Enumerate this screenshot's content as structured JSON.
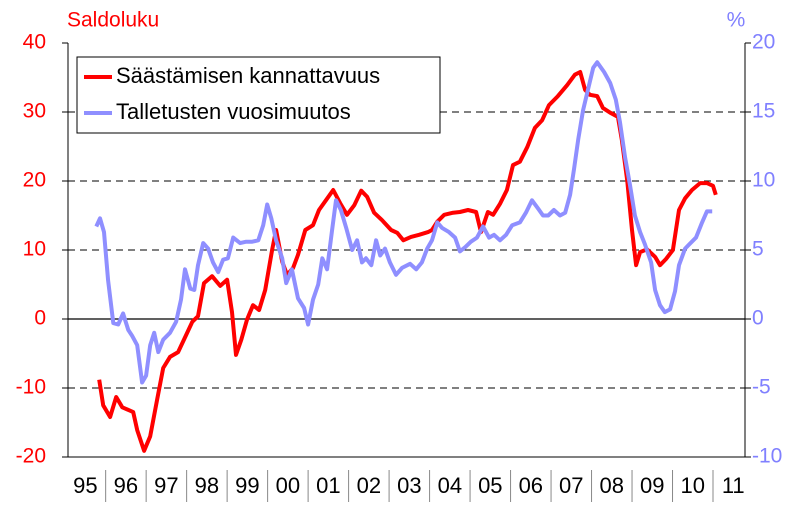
{
  "chart_data": {
    "type": "line",
    "y_axis_label": "Saldoluku",
    "y2_axis_label": "%",
    "categories": [
      "95",
      "96",
      "97",
      "98",
      "99",
      "00",
      "01",
      "02",
      "03",
      "04",
      "05",
      "06",
      "07",
      "08",
      "09",
      "10",
      "11"
    ],
    "xlim": [
      1995.07,
      2011.79
    ],
    "xticks": [
      1996,
      1997,
      1998,
      1999,
      2000,
      2001,
      2002,
      2003,
      2004,
      2005,
      2006,
      2007,
      2008,
      2009,
      2010,
      2011
    ],
    "ylim": [
      -20,
      40
    ],
    "yticks": [
      -20,
      -10,
      0,
      10,
      20,
      30,
      40
    ],
    "y2lim": [
      -10,
      20
    ],
    "y2ticks": [
      -10,
      -5,
      0,
      5,
      10,
      15,
      20
    ],
    "grid": true,
    "legend": "upper left",
    "y_color": "#ff0000",
    "y2_color": "#8080ff",
    "series": [
      {
        "name": "Säästämisen kannattavuus",
        "color": "#ff0000",
        "axis": "y",
        "x": [
          1995.84,
          1995.94,
          1996.11,
          1996.26,
          1996.41,
          1996.68,
          1996.78,
          1996.95,
          1997.1,
          1997.27,
          1997.42,
          1997.59,
          1997.79,
          1997.99,
          1998.14,
          1998.28,
          1998.43,
          1998.63,
          1998.83,
          1999.0,
          1999.12,
          1999.22,
          1999.35,
          1999.49,
          1999.64,
          1999.79,
          1999.94,
          2000.11,
          2000.21,
          2000.36,
          2000.48,
          2000.63,
          2000.75,
          2000.93,
          2001.12,
          2001.27,
          2001.44,
          2001.62,
          2001.79,
          2001.96,
          2002.14,
          2002.31,
          2002.46,
          2002.63,
          2002.83,
          2003.05,
          2003.2,
          2003.35,
          2003.54,
          2003.74,
          2003.96,
          2004.06,
          2004.19,
          2004.36,
          2004.58,
          2004.75,
          2004.95,
          2005.15,
          2005.27,
          2005.44,
          2005.57,
          2005.74,
          2005.91,
          2006.06,
          2006.23,
          2006.41,
          2006.6,
          2006.78,
          2006.95,
          2007.17,
          2007.4,
          2007.59,
          2007.72,
          2007.84,
          2007.96,
          2008.14,
          2008.28,
          2008.46,
          2008.65,
          2008.75,
          2008.88,
          2009.0,
          2009.1,
          2009.2,
          2009.37,
          2009.57,
          2009.69,
          2009.84,
          2010.01,
          2010.16,
          2010.31,
          2010.48,
          2010.68,
          2010.85,
          2011.0,
          2011.07
        ],
        "values": [
          -8.8,
          -12.5,
          -14.2,
          -11.3,
          -12.8,
          -13.5,
          -16.1,
          -19.1,
          -17.0,
          -11.7,
          -7.1,
          -5.5,
          -4.8,
          -2.3,
          -0.4,
          0.4,
          5.2,
          6.2,
          4.8,
          5.7,
          1.0,
          -5.2,
          -3.0,
          -0.1,
          2.0,
          1.3,
          4.2,
          10.0,
          12.9,
          8.3,
          6.4,
          7.4,
          9.3,
          12.9,
          13.6,
          15.8,
          17.2,
          18.7,
          16.8,
          15.1,
          16.5,
          18.6,
          17.7,
          15.4,
          14.3,
          12.9,
          12.5,
          11.4,
          11.9,
          12.2,
          12.6,
          12.9,
          14.1,
          15.1,
          15.4,
          15.5,
          15.8,
          15.5,
          12.6,
          15.5,
          15.1,
          16.7,
          18.7,
          22.3,
          22.8,
          24.9,
          27.7,
          28.8,
          31.0,
          32.3,
          33.9,
          35.4,
          35.8,
          33.2,
          32.5,
          32.3,
          30.6,
          29.9,
          29.3,
          25.9,
          20.1,
          12.9,
          7.8,
          9.7,
          10.1,
          9.0,
          7.8,
          8.7,
          10.0,
          15.8,
          17.5,
          18.7,
          19.7,
          19.7,
          19.3,
          18.0
        ]
      },
      {
        "name": "Talletusten vuosimuutos",
        "color": "#8f8fff",
        "axis": "y2",
        "x": [
          1995.77,
          1995.86,
          1995.96,
          1996.06,
          1996.19,
          1996.31,
          1996.43,
          1996.56,
          1996.65,
          1996.78,
          1996.9,
          1997.0,
          1997.1,
          1997.2,
          1997.3,
          1997.42,
          1997.59,
          1997.74,
          1997.86,
          1997.96,
          1998.09,
          1998.19,
          1998.28,
          1998.41,
          1998.53,
          1998.65,
          1998.78,
          1998.9,
          1999.02,
          1999.15,
          1999.32,
          1999.47,
          1999.62,
          1999.77,
          1999.89,
          1999.99,
          2000.09,
          2000.21,
          2000.36,
          2000.46,
          2000.6,
          2000.75,
          2000.9,
          2001.0,
          2001.12,
          2001.25,
          2001.35,
          2001.47,
          2001.59,
          2001.69,
          2001.81,
          2001.94,
          2002.09,
          2002.21,
          2002.33,
          2002.43,
          2002.56,
          2002.68,
          2002.78,
          2002.9,
          2003.02,
          2003.17,
          2003.32,
          2003.52,
          2003.67,
          2003.81,
          2003.94,
          2004.06,
          2004.19,
          2004.31,
          2004.48,
          2004.63,
          2004.75,
          2004.88,
          2005.02,
          2005.17,
          2005.32,
          2005.47,
          2005.59,
          2005.74,
          2005.89,
          2006.04,
          2006.23,
          2006.38,
          2006.53,
          2006.68,
          2006.8,
          2006.93,
          2007.07,
          2007.22,
          2007.35,
          2007.47,
          2007.57,
          2007.67,
          2007.79,
          2007.91,
          2008.04,
          2008.14,
          2008.31,
          2008.46,
          2008.6,
          2008.7,
          2008.83,
          2008.95,
          2009.07,
          2009.2,
          2009.32,
          2009.47,
          2009.57,
          2009.69,
          2009.81,
          2009.94,
          2010.06,
          2010.16,
          2010.31,
          2010.41,
          2010.58,
          2010.73,
          2010.85,
          2010.98
        ],
        "values": [
          6.7,
          7.3,
          6.3,
          2.8,
          -0.3,
          -0.4,
          0.4,
          -0.8,
          -1.2,
          -1.9,
          -4.6,
          -4.1,
          -1.9,
          -1.0,
          -2.4,
          -1.5,
          -1.0,
          -0.2,
          1.4,
          3.6,
          2.2,
          2.1,
          3.9,
          5.5,
          5.1,
          4.1,
          3.4,
          4.3,
          4.4,
          5.9,
          5.5,
          5.6,
          5.6,
          5.7,
          6.8,
          8.3,
          7.3,
          5.7,
          4.4,
          2.6,
          3.6,
          1.5,
          0.8,
          -0.4,
          1.4,
          2.5,
          4.4,
          3.6,
          6.4,
          8.6,
          7.9,
          6.6,
          5.0,
          5.7,
          4.1,
          4.4,
          3.9,
          5.7,
          4.6,
          5.1,
          4.1,
          3.2,
          3.7,
          4.0,
          3.6,
          4.1,
          5.1,
          5.7,
          7.0,
          6.6,
          6.3,
          5.9,
          4.9,
          5.2,
          5.6,
          5.9,
          6.7,
          5.9,
          6.1,
          5.7,
          6.1,
          6.8,
          7.0,
          7.7,
          8.6,
          8.0,
          7.5,
          7.5,
          7.9,
          7.5,
          7.7,
          9.0,
          10.9,
          13.0,
          15.1,
          16.6,
          18.2,
          18.6,
          17.9,
          17.1,
          15.9,
          14.3,
          11.7,
          9.7,
          7.5,
          6.3,
          5.4,
          4.1,
          2.1,
          1.0,
          0.5,
          0.7,
          2.0,
          3.9,
          5.1,
          5.4,
          5.9,
          7.0,
          7.8,
          7.8
        ]
      }
    ]
  }
}
